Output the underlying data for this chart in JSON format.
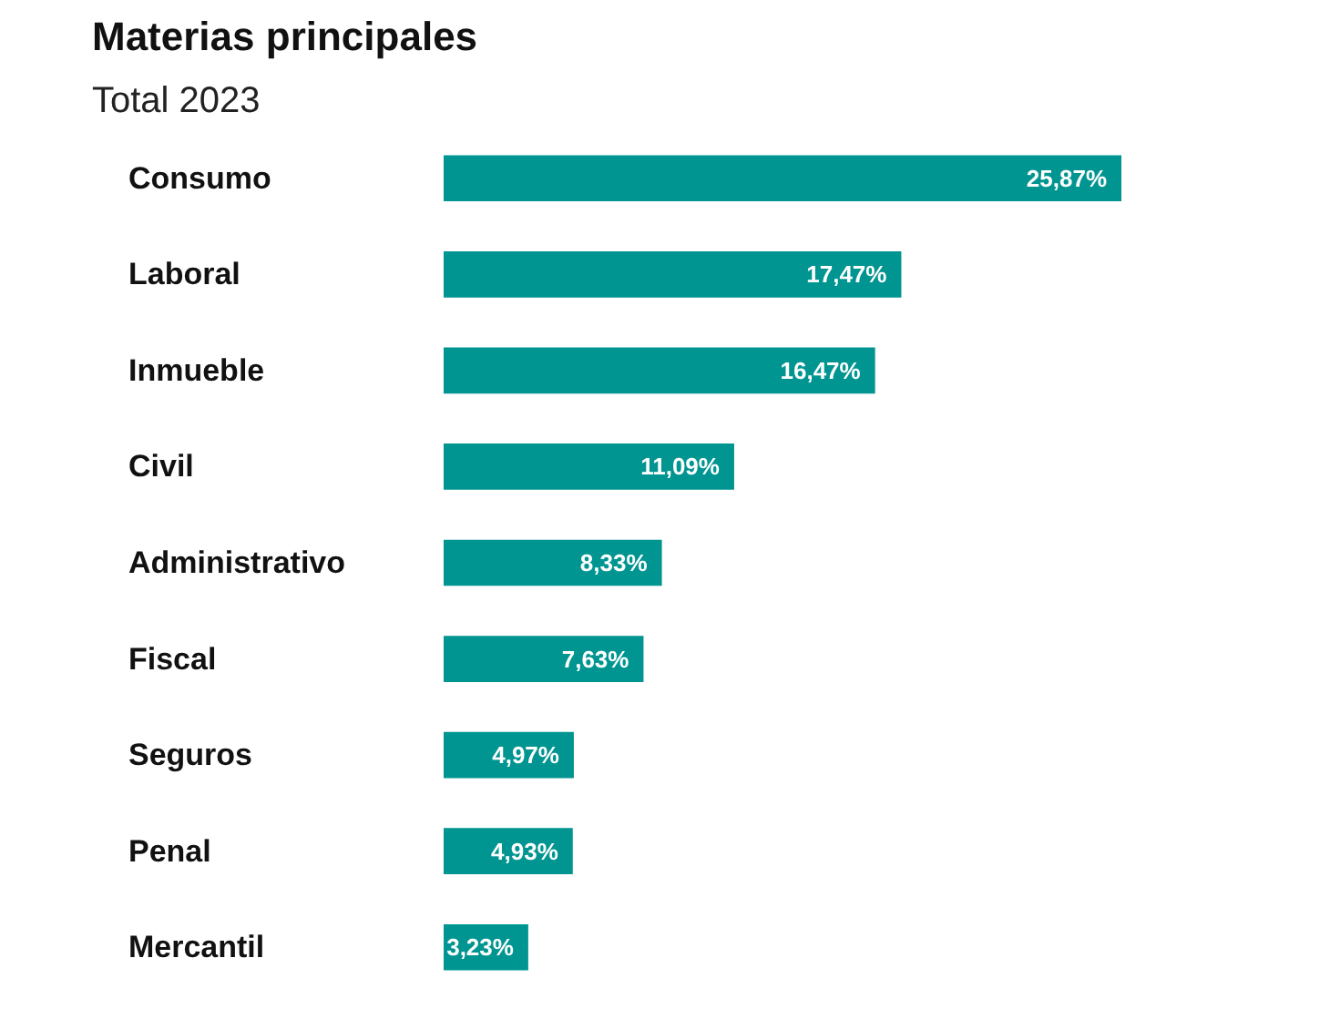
{
  "chart_data": {
    "type": "bar",
    "orientation": "horizontal",
    "title": "Materias principales",
    "subtitle": "Total 2023",
    "categories": [
      "Consumo",
      "Laboral",
      "Inmueble",
      "Civil",
      "Administrativo",
      "Fiscal",
      "Seguros",
      "Penal",
      "Mercantil"
    ],
    "values": [
      25.87,
      17.47,
      16.47,
      11.09,
      8.33,
      7.63,
      4.97,
      4.93,
      3.23
    ],
    "value_labels": [
      "25,87%",
      "17,47%",
      "16,47%",
      "11,09%",
      "8,33%",
      "7,63%",
      "4,97%",
      "4,93%",
      "3,23%"
    ],
    "color": "#009591",
    "grid": false
  }
}
